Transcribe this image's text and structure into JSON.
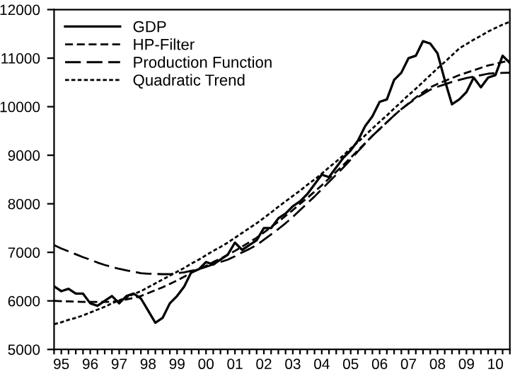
{
  "chart_data": {
    "type": "line",
    "categories": [
      null,
      "95",
      null,
      null,
      null,
      "96",
      null,
      null,
      null,
      "97",
      null,
      null,
      null,
      "98",
      null,
      null,
      null,
      "99",
      null,
      null,
      null,
      "00",
      null,
      null,
      null,
      "01",
      null,
      null,
      null,
      "02",
      null,
      null,
      null,
      "03",
      null,
      null,
      null,
      "04",
      null,
      null,
      null,
      "05",
      null,
      null,
      null,
      "06",
      null,
      null,
      null,
      "07",
      null,
      null,
      null,
      "08",
      null,
      null,
      null,
      "09",
      null,
      null,
      null,
      "10",
      null,
      null
    ],
    "series": [
      {
        "name": "GDP",
        "color": "#000000",
        "line_style": "solid",
        "values": [
          6300,
          6200,
          6250,
          6150,
          6150,
          5950,
          5900,
          6000,
          6100,
          5950,
          6100,
          6150,
          6050,
          5800,
          5550,
          5650,
          5950,
          6100,
          6300,
          6600,
          6650,
          6800,
          6750,
          6850,
          6950,
          7200,
          7050,
          7150,
          7250,
          7500,
          7500,
          7700,
          7800,
          7950,
          8050,
          8200,
          8400,
          8600,
          8550,
          8750,
          8950,
          9100,
          9300,
          9600,
          9800,
          10100,
          10150,
          10550,
          10700,
          11000,
          11050,
          11350,
          11300,
          11100,
          10550,
          10050,
          10150,
          10300,
          10600,
          10400,
          10600,
          10650,
          11050,
          10900
        ]
      },
      {
        "name": "HP-Filter",
        "color": "#000000",
        "line_style": "dashed",
        "values": [
          6000,
          5995,
          5990,
          5985,
          5980,
          5980,
          5980,
          5980,
          5980,
          6000,
          6030,
          6060,
          6100,
          6160,
          6220,
          6280,
          6350,
          6420,
          6500,
          6580,
          6650,
          6720,
          6800,
          6870,
          6950,
          7030,
          7120,
          7210,
          7300,
          7410,
          7520,
          7630,
          7750,
          7870,
          8000,
          8120,
          8250,
          8380,
          8520,
          8660,
          8800,
          8950,
          9100,
          9250,
          9400,
          9540,
          9680,
          9820,
          9950,
          10070,
          10190,
          10300,
          10400,
          10470,
          10530,
          10590,
          10650,
          10700,
          10750,
          10800,
          10850,
          10880,
          10920,
          10950
        ]
      },
      {
        "name": "Production Function",
        "color": "#000000",
        "line_style": "dashed",
        "values": [
          7150,
          7080,
          7020,
          6960,
          6900,
          6850,
          6790,
          6740,
          6700,
          6660,
          6630,
          6600,
          6570,
          6560,
          6555,
          6550,
          6550,
          6570,
          6590,
          6620,
          6650,
          6700,
          6750,
          6800,
          6850,
          6920,
          7000,
          7070,
          7150,
          7260,
          7370,
          7480,
          7600,
          7730,
          7870,
          8010,
          8150,
          8300,
          8450,
          8600,
          8750,
          8910,
          9080,
          9240,
          9400,
          9540,
          9680,
          9820,
          9950,
          10060,
          10170,
          10260,
          10350,
          10410,
          10460,
          10510,
          10550,
          10590,
          10620,
          10650,
          10680,
          10690,
          10695,
          10700
        ]
      },
      {
        "name": "Quadratic Trend",
        "color": "#000000",
        "line_style": "dotted",
        "values": [
          5520,
          5560,
          5610,
          5650,
          5700,
          5760,
          5820,
          5880,
          5950,
          6010,
          6070,
          6140,
          6200,
          6280,
          6360,
          6440,
          6520,
          6600,
          6680,
          6770,
          6850,
          6940,
          7030,
          7110,
          7200,
          7300,
          7400,
          7500,
          7600,
          7710,
          7820,
          7940,
          8050,
          8160,
          8270,
          8390,
          8500,
          8620,
          8750,
          8870,
          9000,
          9140,
          9270,
          9410,
          9550,
          9690,
          9820,
          9960,
          10100,
          10240,
          10370,
          10510,
          10650,
          10790,
          10920,
          11060,
          11200,
          11290,
          11380,
          11460,
          11550,
          11620,
          11690,
          11750
        ]
      }
    ],
    "ylim": [
      5000,
      12000
    ],
    "yticks": [
      5000,
      6000,
      7000,
      8000,
      9000,
      10000,
      11000,
      12000
    ],
    "legend": "top left",
    "grid": false,
    "marker": "none"
  }
}
